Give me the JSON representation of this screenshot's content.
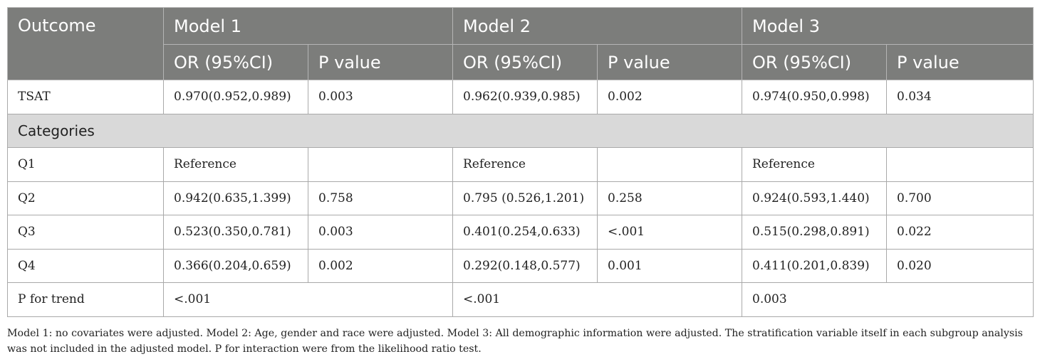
{
  "table": {
    "header": {
      "outcome": "Outcome",
      "models": [
        "Model 1",
        "Model 2",
        "Model 3"
      ],
      "sub": [
        "OR (95%CI)",
        "P value",
        "OR (95%CI)",
        "P value",
        "OR (95%CI)",
        "P value"
      ]
    },
    "tsat": {
      "label": "TSAT",
      "cells": [
        "0.970(0.952,0.989)",
        "0.003",
        "0.962(0.939,0.985)",
        "0.002",
        "0.974(0.950,0.998)",
        "0.034"
      ]
    },
    "section_label": "Categories",
    "rows": [
      {
        "label": "Q1",
        "cells": [
          "Reference",
          "",
          "Reference",
          "",
          "Reference",
          ""
        ]
      },
      {
        "label": "Q2",
        "cells": [
          "0.942(0.635,1.399)",
          "0.758",
          "0.795 (0.526,1.201)",
          "0.258",
          "0.924(0.593,1.440)",
          "0.700"
        ]
      },
      {
        "label": "Q3",
        "cells": [
          "0.523(0.350,0.781)",
          "0.003",
          "0.401(0.254,0.633)",
          "<.001",
          "0.515(0.298,0.891)",
          "0.022"
        ]
      },
      {
        "label": "Q4",
        "cells": [
          "0.366(0.204,0.659)",
          "0.002",
          "0.292(0.148,0.577)",
          "0.001",
          "0.411(0.201,0.839)",
          "0.020"
        ]
      }
    ],
    "trend": {
      "label": "P for trend",
      "cells": [
        "<.001",
        "<.001",
        "0.003"
      ]
    }
  },
  "footnote": "Model 1: no covariates were adjusted. Model 2: Age, gender and race were adjusted. Model 3: All demographic information were adjusted. The stratification variable itself in each subgroup analysis was not included in the adjusted model. P for interaction were from the likelihood ratio test."
}
